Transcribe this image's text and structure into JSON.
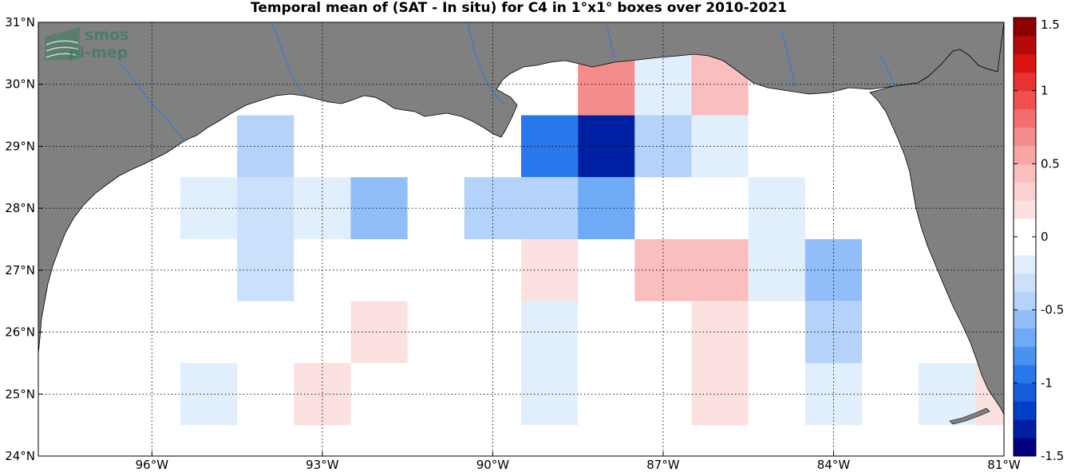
{
  "chart_data": {
    "type": "heatmap",
    "title": "Temporal mean of (SAT - In situ) for C4 in 1°x1° boxes over 2010-2021",
    "xlim": [
      -98,
      -81
    ],
    "ylim": [
      24,
      31
    ],
    "x_ticks": [
      -96,
      -93,
      -90,
      -87,
      -84,
      -81
    ],
    "y_ticks": [
      24,
      25,
      26,
      27,
      28,
      29,
      30,
      31
    ],
    "x_tick_labels": [
      "96°W",
      "93°W",
      "90°W",
      "87°W",
      "84°W",
      "81°W"
    ],
    "y_tick_labels": [
      "24°N",
      "25°N",
      "26°N",
      "27°N",
      "28°N",
      "29°N",
      "30°N",
      "31°N"
    ],
    "grid": true,
    "colorbar": {
      "range": [
        -1.5,
        1.5
      ],
      "ticks": [
        -1.5,
        -1,
        -0.5,
        0,
        0.5,
        1,
        1.5
      ],
      "tick_labels": [
        "-1.5",
        "-1",
        "-0.5",
        "0",
        "0.5",
        "1",
        "1.5"
      ],
      "placement": "right"
    },
    "cells": [
      {
        "lon": -94,
        "lat": 29,
        "value": -0.5
      },
      {
        "lon": -95,
        "lat": 28,
        "value": -0.25
      },
      {
        "lon": -94,
        "lat": 28,
        "value": -0.35
      },
      {
        "lon": -93,
        "lat": 28,
        "value": -0.25
      },
      {
        "lon": -92,
        "lat": 28,
        "value": -0.6
      },
      {
        "lon": -94,
        "lat": 27,
        "value": -0.3
      },
      {
        "lon": -92,
        "lat": 26,
        "value": 0.15
      },
      {
        "lon": -95,
        "lat": 25,
        "value": -0.15
      },
      {
        "lon": -93,
        "lat": 25,
        "value": 0.15
      },
      {
        "lon": -89,
        "lat": 29,
        "value": -1.0
      },
      {
        "lon": -88,
        "lat": 29,
        "value": -1.35
      },
      {
        "lon": -88,
        "lat": 30,
        "value": 0.7
      },
      {
        "lon": -87,
        "lat": 30,
        "value": -0.15
      },
      {
        "lon": -86,
        "lat": 30,
        "value": 0.4
      },
      {
        "lon": -87,
        "lat": 29,
        "value": -0.4
      },
      {
        "lon": -86,
        "lat": 29,
        "value": -0.15
      },
      {
        "lon": -90,
        "lat": 28,
        "value": -0.4
      },
      {
        "lon": -89,
        "lat": 28,
        "value": -0.5
      },
      {
        "lon": -88,
        "lat": 28,
        "value": -0.65
      },
      {
        "lon": -85,
        "lat": 28,
        "value": -0.25
      },
      {
        "lon": -89,
        "lat": 27,
        "value": 0.15
      },
      {
        "lon": -87,
        "lat": 27,
        "value": 0.45
      },
      {
        "lon": -86,
        "lat": 27,
        "value": 0.4
      },
      {
        "lon": -85,
        "lat": 27,
        "value": -0.15
      },
      {
        "lon": -84,
        "lat": 27,
        "value": -0.6
      },
      {
        "lon": -89,
        "lat": 26,
        "value": -0.15
      },
      {
        "lon": -86,
        "lat": 26,
        "value": 0.15
      },
      {
        "lon": -84,
        "lat": 26,
        "value": -0.5
      },
      {
        "lon": -89,
        "lat": 25,
        "value": -0.15
      },
      {
        "lon": -86,
        "lat": 25,
        "value": 0.15
      },
      {
        "lon": -84,
        "lat": 25,
        "value": -0.15
      },
      {
        "lon": -82,
        "lat": 25,
        "value": -0.15
      },
      {
        "lon": -81,
        "lat": 25,
        "value": 0.15
      }
    ],
    "land_color": "#808080",
    "river_color": "#2a7fd4",
    "logo_text": [
      "smos",
      "pi-mep"
    ]
  }
}
